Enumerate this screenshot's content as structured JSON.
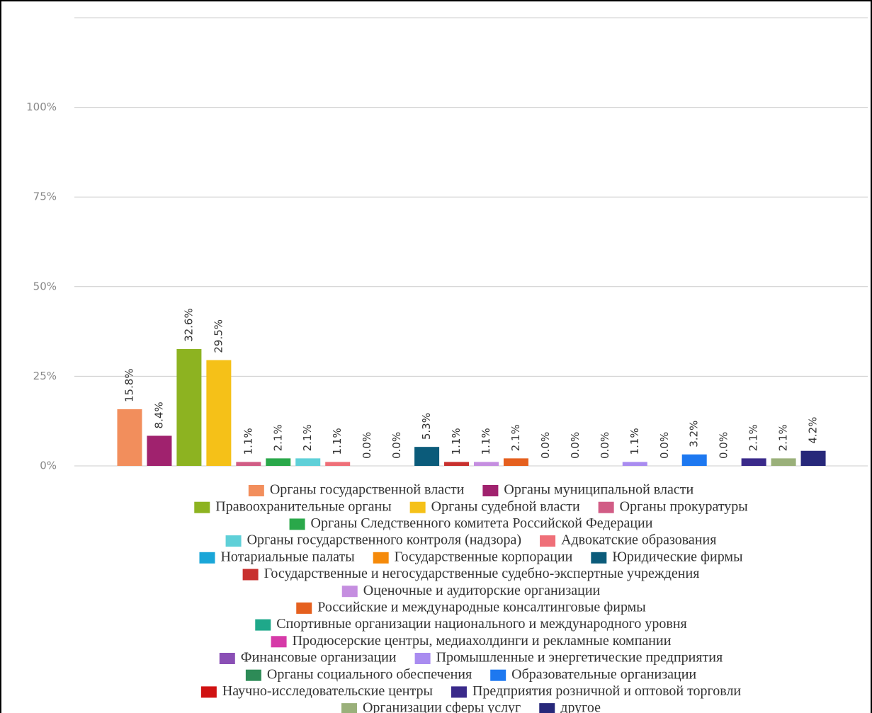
{
  "chart_data": {
    "type": "bar",
    "categories": [
      "Органы государственной власти",
      "Органы муниципальной власти",
      "Правоохранительные органы",
      "Органы судебной власти",
      "Органы прокуратуры",
      "Органы Следственного комитета Российской Федерации",
      "Органы государственного контроля (надзора)",
      "Адвокатские образования",
      "Нотариальные палаты",
      "Государственные корпорации",
      "Юридические фирмы",
      "Государственные и негосударственные судебно-экспертные учреждения",
      "Оценочные и аудиторские организации",
      "Российские и международные консалтинговые фирмы",
      "Спортивные организации национального и международного уровня",
      "Продюсерские центры, медиахолдинги и рекламные компании",
      "Финансовые организации",
      "Промышленные и энергетические предприятия",
      "Органы социального обеспечения",
      "Образовательные организации",
      "Научно-исследовательские центры",
      "Предприятия розничной и оптовой торговли",
      "Организации сферы услуг",
      "другое"
    ],
    "values": [
      15.8,
      8.4,
      32.6,
      29.5,
      1.1,
      2.1,
      2.1,
      1.1,
      0.0,
      0.0,
      5.3,
      1.1,
      1.1,
      2.1,
      0.0,
      0.0,
      0.0,
      1.1,
      0.0,
      3.2,
      0.0,
      2.1,
      2.1,
      4.2
    ],
    "value_labels": [
      "15.8%",
      "8.4%",
      "32.6%",
      "29.5%",
      "1.1%",
      "2.1%",
      "2.1%",
      "1.1%",
      "0.0%",
      "0.0%",
      "5.3%",
      "1.1%",
      "1.1%",
      "2.1%",
      "0.0%",
      "0.0%",
      "0.0%",
      "1.1%",
      "0.0%",
      "3.2%",
      "0.0%",
      "2.1%",
      "2.1%",
      "4.2%"
    ],
    "colors": [
      "#f28e5c",
      "#a0226e",
      "#8db321",
      "#f5c118",
      "#d15c85",
      "#2aa84a",
      "#5fd0d8",
      "#ef6f78",
      "#1aa6d8",
      "#f58a0a",
      "#0b5b7a",
      "#c8302e",
      "#c58ee0",
      "#e5601f",
      "#1fa88a",
      "#d63aa8",
      "#8a4fb5",
      "#a98cf0",
      "#2d8b57",
      "#1d78f0",
      "#d01212",
      "#3a2a8a",
      "#9ab07a",
      "#27287a"
    ],
    "ylim": [
      0,
      125
    ],
    "yticks": [
      {
        "value": 0,
        "label": "0%"
      },
      {
        "value": 25,
        "label": "25%"
      },
      {
        "value": 50,
        "label": "50%"
      },
      {
        "value": 75,
        "label": "75%"
      },
      {
        "value": 100,
        "label": "100%"
      }
    ],
    "grid": true
  }
}
